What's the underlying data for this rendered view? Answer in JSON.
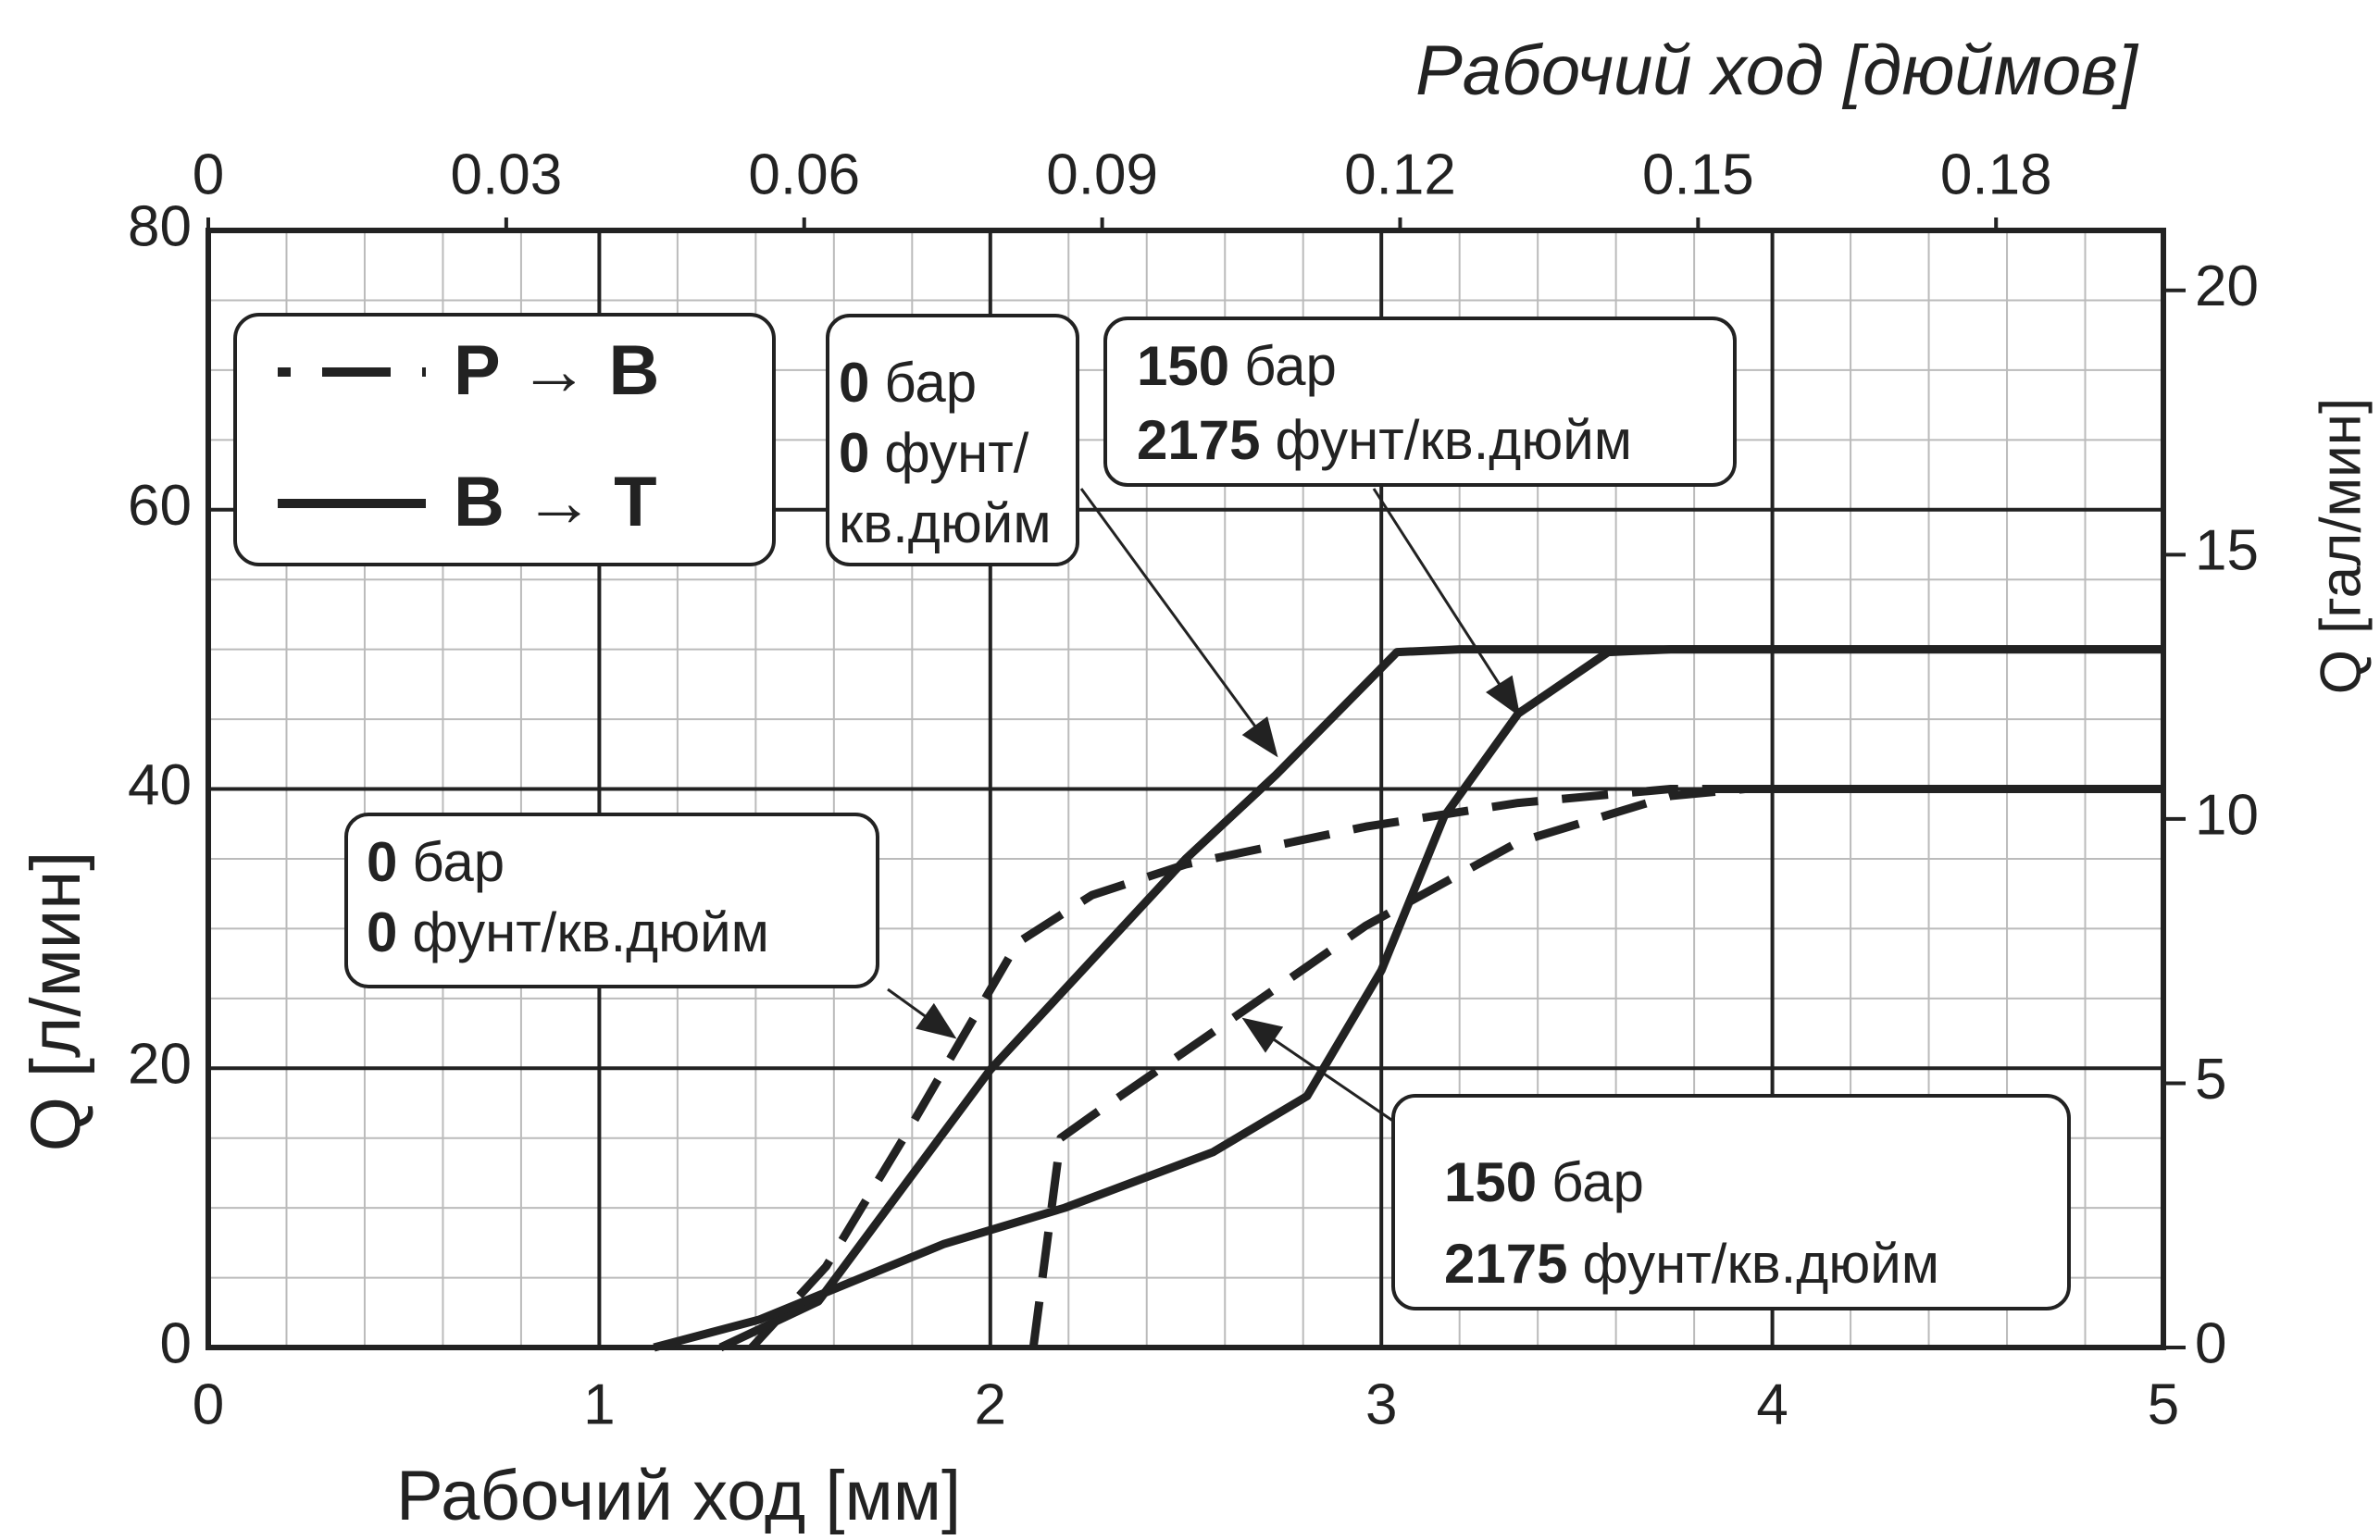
{
  "chart_data": {
    "type": "line",
    "x_label": "Рабочий ход [мм]",
    "x2_label": "Рабочий ход [дюймов]",
    "y_label": "Q [л/мин]",
    "y2_label": "Q [гал/мин]",
    "xlim": [
      0,
      5
    ],
    "xticks": [
      0,
      1,
      2,
      3,
      4,
      5
    ],
    "x2lim": [
      0,
      0.19685
    ],
    "x2ticks": [
      0,
      0.03,
      0.06,
      0.09,
      0.12,
      0.15,
      0.18
    ],
    "ylim": [
      0,
      80
    ],
    "yticks": [
      0,
      20,
      40,
      60,
      80
    ],
    "y2lim": [
      0,
      21.134
    ],
    "y2ticks": [
      0,
      5,
      10,
      15,
      20
    ],
    "grid": true,
    "minor_grid": {
      "x": 0.2,
      "y": 5
    },
    "legend": "upper left",
    "series": [
      {
        "name": "P → B",
        "color": "#222222",
        "style": "dashed",
        "x": [
          1.39,
          1.58,
          1.8,
          2.07,
          2.26,
          2.5,
          2.96,
          3.35,
          3.74,
          5
        ],
        "values": [
          0,
          5.8,
          16,
          29,
          32.4,
          34.6,
          37.3,
          39,
          40,
          40
        ]
      },
      {
        "name": "B → T",
        "color": "#222222",
        "style": "solid",
        "x": [
          1.31,
          1.56,
          2.0,
          2.5,
          2.73,
          3.04,
          3.2,
          5
        ],
        "values": [
          0,
          3.3,
          19.9,
          35,
          41,
          49.8,
          50,
          50
        ]
      },
      {
        "name": "B → T",
        "color": "#222222",
        "style": "solid",
        "x": [
          1.14,
          1.41,
          1.88,
          2.19,
          2.57,
          2.81,
          3.0,
          3.16,
          3.35,
          3.58,
          3.74,
          5
        ],
        "values": [
          0,
          2,
          7.4,
          10,
          14,
          18,
          27,
          38,
          45.4,
          49.8,
          50,
          50
        ]
      },
      {
        "name": "P → B",
        "color": "#222222",
        "style": "dashed",
        "x": [
          2.11,
          2.18,
          2.26,
          2.57,
          2.96,
          3.35,
          3.74,
          3.93,
          5
        ],
        "values": [
          0,
          15,
          16.6,
          22.6,
          30.2,
          36.2,
          39.5,
          40,
          40
        ]
      }
    ],
    "annotations": [
      {
        "lines": [
          {
            "bold": "0",
            "text": "бар"
          },
          {
            "bold": "0",
            "text": "фунт/кв.дюйм"
          }
        ]
      },
      {
        "lines": [
          {
            "bold": "0",
            "text": "бар"
          },
          {
            "bold": "0",
            "text": "фунт/"
          },
          {
            "text": "кв.дюйм"
          }
        ]
      },
      {
        "lines": [
          {
            "bold": "150",
            "text": "бар"
          },
          {
            "bold": "2175",
            "text": "фунт/кв.дюйм"
          }
        ]
      },
      {
        "lines": [
          {
            "bold": "150",
            "text": "бар"
          },
          {
            "bold": "2175",
            "text": "фунт/кв.дюйм"
          }
        ]
      }
    ]
  }
}
